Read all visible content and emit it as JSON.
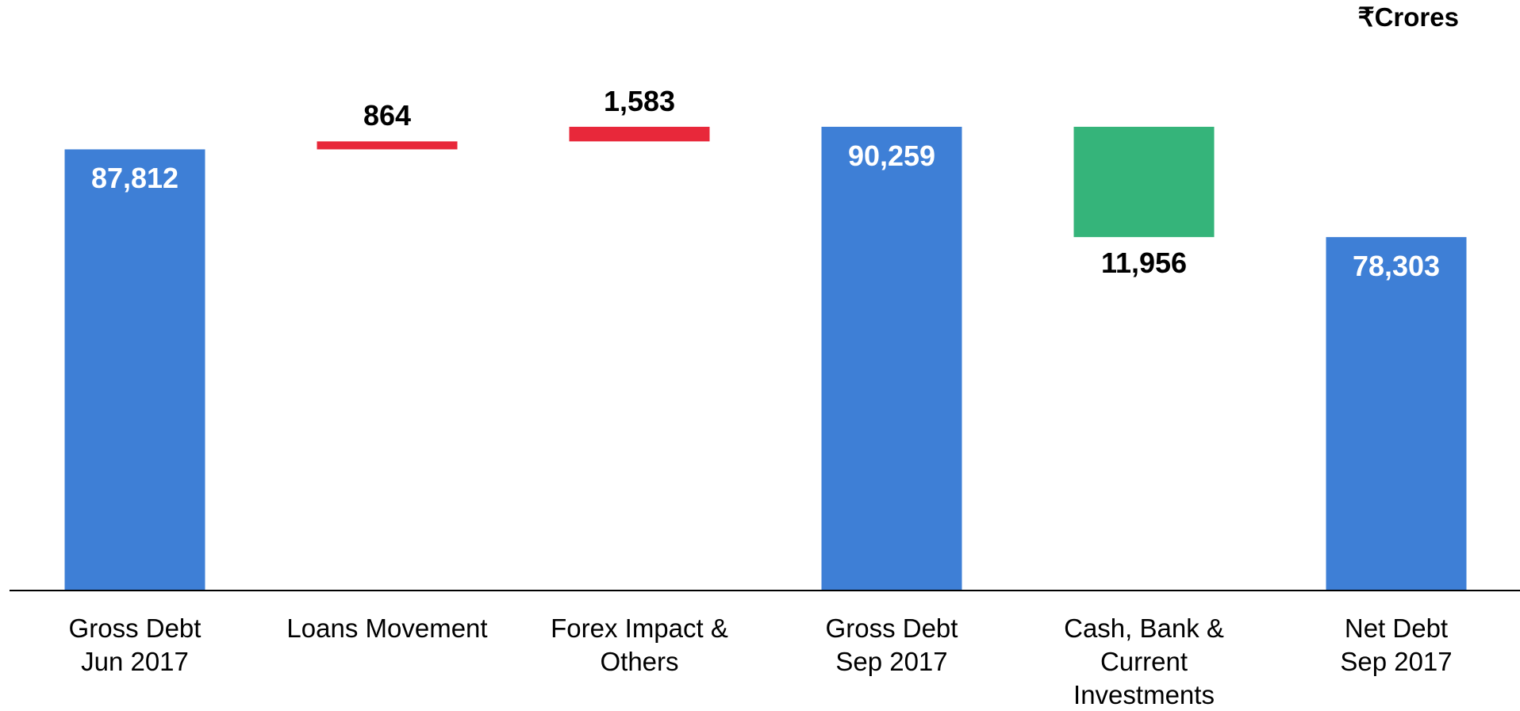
{
  "chart_data": {
    "type": "waterfall",
    "unit_label": "₹Crores",
    "categories": [
      "Gross Debt\nJun 2017",
      "Loans Movement",
      "Forex Impact &\nOthers",
      "Gross Debt\nSep 2017",
      "Cash, Bank &\nCurrent\nInvestments",
      "Net Debt\nSep 2017"
    ],
    "values": [
      87812,
      864,
      1583,
      90259,
      -11956,
      78303
    ],
    "value_labels": [
      "87,812",
      "864",
      "1,583",
      "90,259",
      "11,956",
      "78,303"
    ],
    "totals": [
      true,
      false,
      false,
      true,
      false,
      true
    ],
    "colors": {
      "total": "#3e7fd6",
      "increase": "#e8283a",
      "decrease": "#35b47a"
    },
    "ylim": [
      40000,
      104000
    ]
  }
}
